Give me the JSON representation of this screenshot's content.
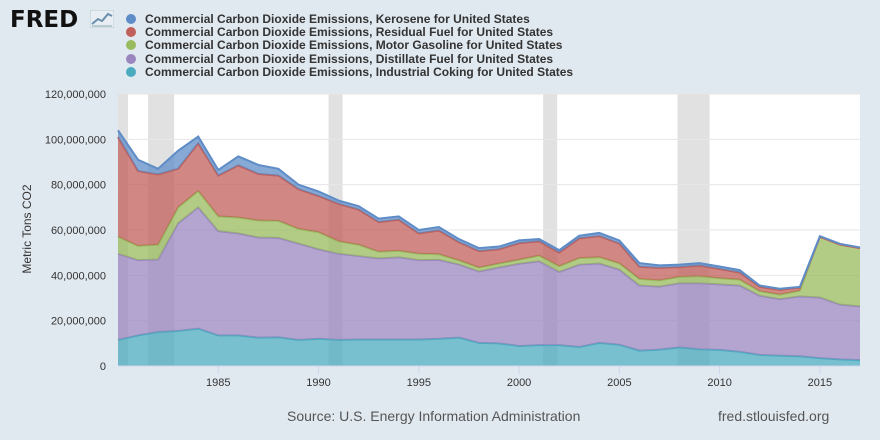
{
  "header": {
    "logo_text": "FRED",
    "logo_icon": "chart-line-icon"
  },
  "footer": {
    "source": "Source: U.S. Energy Information Administration",
    "url": "fred.stlouisfed.org"
  },
  "chart_data": {
    "type": "area",
    "stacked": true,
    "ylabel": "Metric Tons CO2",
    "xlabel": "",
    "ylim": [
      0,
      120000000
    ],
    "xlim": [
      1980,
      2017
    ],
    "ytick_labels": [
      "0",
      "20,000,000",
      "40,000,000",
      "60,000,000",
      "80,000,000",
      "100,000,000",
      "120,000,000"
    ],
    "ytick_values": [
      0,
      20000000,
      40000000,
      60000000,
      80000000,
      100000000,
      120000000
    ],
    "xtick_labels": [
      "1985",
      "1990",
      "1995",
      "2000",
      "2005",
      "2010",
      "2015"
    ],
    "xtick_values": [
      1985,
      1990,
      1995,
      2000,
      2005,
      2010,
      2015
    ],
    "recessions": [
      [
        1980.0,
        1980.5
      ],
      [
        1981.5,
        1982.8
      ],
      [
        1990.5,
        1991.2
      ],
      [
        2001.2,
        2001.9
      ],
      [
        2007.9,
        2009.5
      ]
    ],
    "x": [
      1980,
      1981,
      1982,
      1983,
      1984,
      1985,
      1986,
      1987,
      1988,
      1989,
      1990,
      1991,
      1992,
      1993,
      1994,
      1995,
      1996,
      1997,
      1998,
      1999,
      2000,
      2001,
      2002,
      2003,
      2004,
      2005,
      2006,
      2007,
      2008,
      2009,
      2010,
      2011,
      2012,
      2013,
      2014,
      2015,
      2016,
      2017
    ],
    "series": [
      {
        "name": "Commercial Carbon Dioxide Emissions, Industrial Coking for United States",
        "color": "#4baabf",
        "values": [
          11500000,
          13500000,
          15000000,
          15500000,
          16500000,
          13500000,
          13500000,
          12500000,
          12700000,
          11500000,
          12000000,
          11500000,
          11700000,
          11700000,
          11700000,
          11700000,
          12000000,
          12500000,
          10200000,
          10000000,
          8800000,
          9200000,
          9200000,
          8400000,
          10200000,
          9400000,
          6800000,
          7200000,
          8200000,
          7400000,
          7100000,
          6300000,
          4900000,
          4600000,
          4300000,
          3500000,
          2900000,
          2600000
        ]
      },
      {
        "name": "Commercial Carbon Dioxide Emissions, Distillate Fuel for United States",
        "color": "#9a87bf",
        "values": [
          38000000,
          33200000,
          32000000,
          47500000,
          53500000,
          46000000,
          45000000,
          44200000,
          43800000,
          42500000,
          39500000,
          38000000,
          36800000,
          35800000,
          36300000,
          35000000,
          34800000,
          32300000,
          31500000,
          33500000,
          36300000,
          37000000,
          32300000,
          36300000,
          35000000,
          33100000,
          28700000,
          27800000,
          28300000,
          29100000,
          28900000,
          29200000,
          26100000,
          24900000,
          26400000,
          26700000,
          24200000,
          23700000
        ]
      },
      {
        "name": "Commercial Carbon Dioxide Emissions, Motor Gasoline for United States",
        "color": "#98bb5e",
        "values": [
          7500000,
          6300000,
          6500000,
          7000000,
          7200000,
          6500000,
          7000000,
          7500000,
          7500000,
          6500000,
          7500000,
          5500000,
          5000000,
          2900000,
          2800000,
          2800000,
          2500000,
          1800000,
          1700000,
          1700000,
          1800000,
          2500000,
          2500000,
          2900000,
          2800000,
          2800000,
          2900000,
          2800000,
          2800000,
          3100000,
          2700000,
          2600000,
          2000000,
          2000000,
          2500000,
          26800000,
          26500000,
          25700000
        ]
      },
      {
        "name": "Commercial Carbon Dioxide Emissions, Residual Fuel for United States",
        "color": "#c15f5a",
        "values": [
          44000000,
          33000000,
          31000000,
          17000000,
          21000000,
          18000000,
          23000000,
          20500000,
          20000000,
          17500000,
          16000000,
          16500000,
          15500000,
          13100000,
          13700000,
          9000000,
          10500000,
          8000000,
          7300000,
          6300000,
          7300000,
          6300000,
          6000000,
          8700000,
          9300000,
          8700000,
          5400000,
          5500000,
          4300000,
          4700000,
          4100000,
          3100000,
          1900000,
          2100000,
          1400000,
          0,
          0,
          0
        ]
      },
      {
        "name": "Commercial Carbon Dioxide Emissions, Kerosene for United States",
        "color": "#5e8cc7",
        "values": [
          3000000,
          5000000,
          2500000,
          8000000,
          3000000,
          2500000,
          4000000,
          4000000,
          3000000,
          2000000,
          2000000,
          1500000,
          1500000,
          1500000,
          1500000,
          1500000,
          1500000,
          1400000,
          1300000,
          1200000,
          1200000,
          1000000,
          1100000,
          1200000,
          1400000,
          1400000,
          1600000,
          1100000,
          1100000,
          1100000,
          1100000,
          1100000,
          600000,
          500000,
          300000,
          300000,
          300000,
          300000
        ]
      }
    ],
    "legend_order": [
      4,
      3,
      2,
      1,
      0
    ],
    "legend_position": "top-left"
  }
}
